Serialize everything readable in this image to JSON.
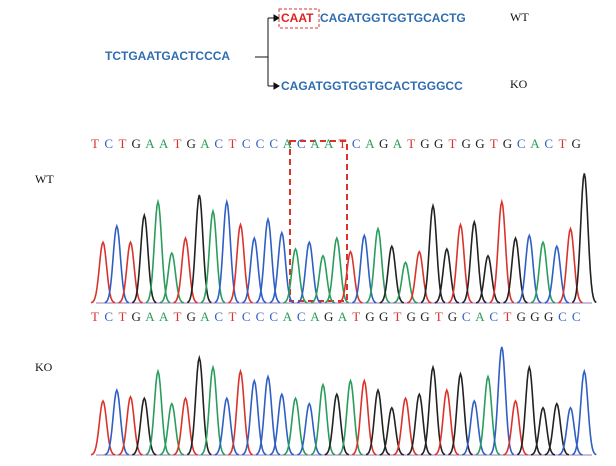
{
  "diagram": {
    "source": "TCTGAATGACTCCCA",
    "wt_site": "CAAT",
    "wt_rest": "CAGATGGTGGTGCACTG",
    "wt_label": "WT",
    "ko_seq": "CAGATGGTGGTGCACTGGGCC",
    "ko_label": "KO"
  },
  "base_colors": {
    "A": "#2a9d5c",
    "C": "#2f5fc4",
    "G": "#222222",
    "T": "#d9342b"
  },
  "ylim": [
    0,
    100
  ],
  "chromatograms": [
    {
      "label": "WT",
      "bases": [
        "T",
        "C",
        "T",
        "G",
        "A",
        "A",
        "T",
        "G",
        "A",
        "C",
        "T",
        "C",
        "C",
        "C",
        "A",
        "C",
        "A",
        "A",
        "T",
        "C",
        "A",
        "G",
        "A",
        "T",
        "G",
        "G",
        "T",
        "G",
        "G",
        "T",
        "G",
        "C",
        "A",
        "C",
        "T",
        "G"
      ],
      "peaks": [
        45,
        57,
        45,
        65,
        75,
        37,
        48,
        80,
        68,
        75,
        58,
        48,
        62,
        52,
        40,
        45,
        35,
        48,
        38,
        50,
        55,
        42,
        30,
        38,
        72,
        40,
        58,
        60,
        35,
        75,
        48,
        50,
        45,
        42,
        55,
        96
      ]
    },
    {
      "label": "KO",
      "bases": [
        "T",
        "C",
        "T",
        "G",
        "A",
        "A",
        "T",
        "G",
        "A",
        "C",
        "T",
        "C",
        "C",
        "C",
        "A",
        "C",
        "A",
        "G",
        "A",
        "T",
        "G",
        "G",
        "T",
        "G",
        "G",
        "T",
        "G",
        "C",
        "A",
        "C",
        "T",
        "G",
        "G",
        "G",
        "C",
        "C"
      ],
      "peaks": [
        40,
        48,
        43,
        42,
        62,
        38,
        42,
        72,
        65,
        42,
        62,
        55,
        58,
        45,
        42,
        38,
        52,
        45,
        55,
        55,
        48,
        35,
        42,
        45,
        65,
        48,
        60,
        40,
        58,
        80,
        40,
        65,
        35,
        38,
        35,
        62
      ]
    }
  ]
}
